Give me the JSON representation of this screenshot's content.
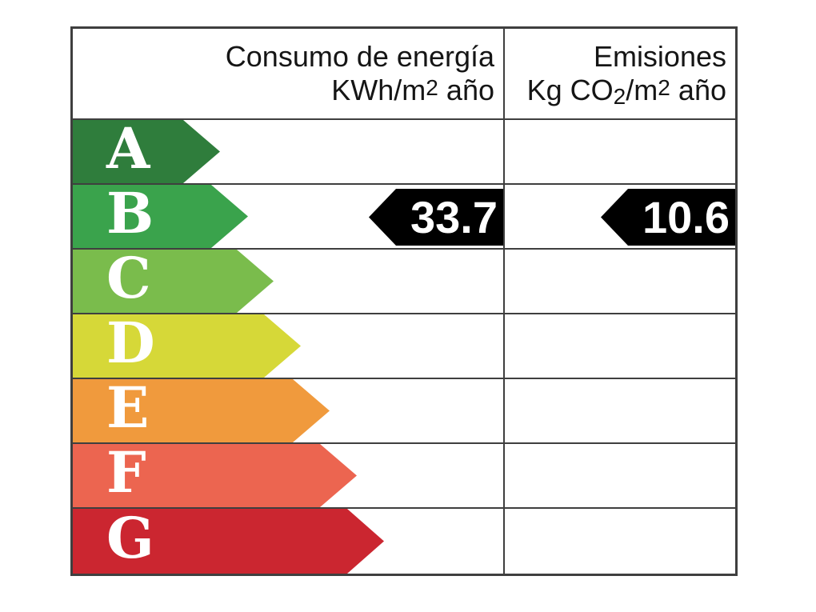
{
  "header": {
    "consumption": {
      "line1": "Consumo de energía",
      "unit_pre": "KWh/m",
      "unit_exp": "2",
      "unit_post": " año"
    },
    "emissions": {
      "line1": "Emisiones",
      "unit_pre": "Kg CO",
      "unit_sub": "2",
      "unit_mid": "/m",
      "unit_exp": "2",
      "unit_post": " año"
    }
  },
  "scale": [
    {
      "letter": "A",
      "color": "#2f7d3c"
    },
    {
      "letter": "B",
      "color": "#3aa34c"
    },
    {
      "letter": "C",
      "color": "#7abc4c"
    },
    {
      "letter": "D",
      "color": "#d6d838"
    },
    {
      "letter": "E",
      "color": "#f09a3d"
    },
    {
      "letter": "F",
      "color": "#ec6550"
    },
    {
      "letter": "G",
      "color": "#cb2630"
    }
  ],
  "result": {
    "rating": "B",
    "consumption_value": "33.7",
    "emissions_value": "10.6",
    "arrow_color": "#000000",
    "value_text_color": "#ffffff"
  },
  "colors": {
    "border": "#3f3f3f",
    "header_text": "#151515",
    "letter_text": "#ffffff",
    "background": "#ffffff"
  },
  "chart_data": {
    "type": "table",
    "title": "",
    "columns": [
      "Consumo de energía KWh/m2 año",
      "Emisiones Kg CO2/m2 año"
    ],
    "categories": [
      "A",
      "B",
      "C",
      "D",
      "E",
      "F",
      "G"
    ],
    "highlighted_category": "B",
    "values": {
      "consumo_kwh_m2_ano": 33.7,
      "emisiones_kg_co2_m2_ano": 10.6
    },
    "notes": "Energy-efficiency scale arrows A (best, shortest) to G (worst, longest); black left-pointing arrows on row B carry the certified values."
  }
}
